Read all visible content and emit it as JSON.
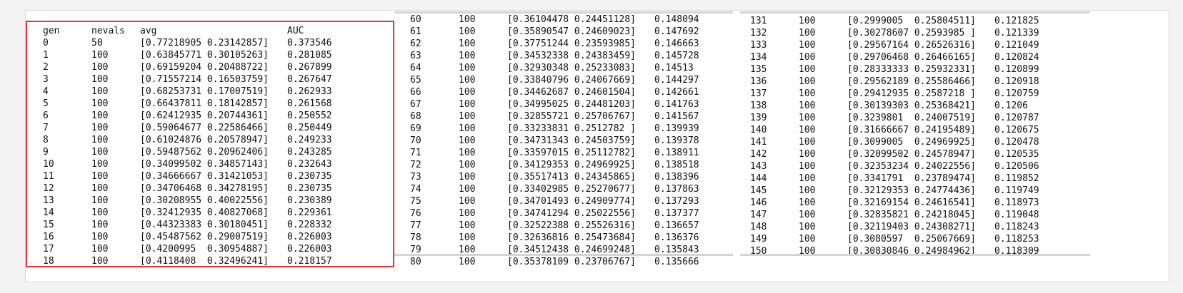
{
  "panel1": {
    "header": {
      "gen": "gen",
      "nevals": "nevals",
      "avg": "avg",
      "auc": "AUC"
    },
    "rows": [
      {
        "gen": "0",
        "nevals": "50",
        "avg": "[0.77218905 0.23142857]",
        "auc": "0.373546"
      },
      {
        "gen": "1",
        "nevals": "100",
        "avg": "[0.63845771 0.30105263]",
        "auc": "0.281085"
      },
      {
        "gen": "2",
        "nevals": "100",
        "avg": "[0.69159204 0.20488722]",
        "auc": "0.267899"
      },
      {
        "gen": "3",
        "nevals": "100",
        "avg": "[0.71557214 0.16503759]",
        "auc": "0.267647"
      },
      {
        "gen": "4",
        "nevals": "100",
        "avg": "[0.68253731 0.17007519]",
        "auc": "0.262933"
      },
      {
        "gen": "5",
        "nevals": "100",
        "avg": "[0.66437811 0.18142857]",
        "auc": "0.261568"
      },
      {
        "gen": "6",
        "nevals": "100",
        "avg": "[0.62412935 0.20744361]",
        "auc": "0.250552"
      },
      {
        "gen": "7",
        "nevals": "100",
        "avg": "[0.59064677 0.22586466]",
        "auc": "0.250449"
      },
      {
        "gen": "8",
        "nevals": "100",
        "avg": "[0.61024876 0.20578947]",
        "auc": "0.249233"
      },
      {
        "gen": "9",
        "nevals": "100",
        "avg": "[0.59487562 0.20962406]",
        "auc": "0.243285"
      },
      {
        "gen": "10",
        "nevals": "100",
        "avg": "[0.34099502 0.34857143]",
        "auc": "0.232643"
      },
      {
        "gen": "11",
        "nevals": "100",
        "avg": "[0.34666667 0.31421053]",
        "auc": "0.230735"
      },
      {
        "gen": "12",
        "nevals": "100",
        "avg": "[0.34706468 0.34278195]",
        "auc": "0.230735"
      },
      {
        "gen": "13",
        "nevals": "100",
        "avg": "[0.30208955 0.40022556]",
        "auc": "0.230389"
      },
      {
        "gen": "14",
        "nevals": "100",
        "avg": "[0.32412935 0.40827068]",
        "auc": "0.229361"
      },
      {
        "gen": "15",
        "nevals": "100",
        "avg": "[0.44323383 0.30180451]",
        "auc": "0.228332"
      },
      {
        "gen": "16",
        "nevals": "100",
        "avg": "[0.45487562 0.29007519]",
        "auc": "0.226003"
      },
      {
        "gen": "17",
        "nevals": "100",
        "avg": "[0.4200995  0.30954887]",
        "auc": "0.226003"
      },
      {
        "gen": "18",
        "nevals": "100",
        "avg": "[0.4118408  0.32496241]",
        "auc": "0.218157"
      }
    ]
  },
  "panel2": {
    "rows": [
      {
        "gen": "60",
        "nevals": "100",
        "avg": "[0.36104478 0.24451128]",
        "auc": "0.148094"
      },
      {
        "gen": "61",
        "nevals": "100",
        "avg": "[0.35890547 0.24609023]",
        "auc": "0.147692"
      },
      {
        "gen": "62",
        "nevals": "100",
        "avg": "[0.37751244 0.23593985]",
        "auc": "0.146663"
      },
      {
        "gen": "63",
        "nevals": "100",
        "avg": "[0.34532338 0.24383459]",
        "auc": "0.145728"
      },
      {
        "gen": "64",
        "nevals": "100",
        "avg": "[0.32930348 0.25233083]",
        "auc": "0.14513"
      },
      {
        "gen": "65",
        "nevals": "100",
        "avg": "[0.33840796 0.24067669]",
        "auc": "0.144297"
      },
      {
        "gen": "66",
        "nevals": "100",
        "avg": "[0.34462687 0.24601504]",
        "auc": "0.142661"
      },
      {
        "gen": "67",
        "nevals": "100",
        "avg": "[0.34995025 0.24481203]",
        "auc": "0.141763"
      },
      {
        "gen": "68",
        "nevals": "100",
        "avg": "[0.32855721 0.25706767]",
        "auc": "0.141567"
      },
      {
        "gen": "69",
        "nevals": "100",
        "avg": "[0.33233831 0.2512782 ]",
        "auc": "0.139939"
      },
      {
        "gen": "70",
        "nevals": "100",
        "avg": "[0.34731343 0.24503759]",
        "auc": "0.139378"
      },
      {
        "gen": "71",
        "nevals": "100",
        "avg": "[0.33597015 0.25112782]",
        "auc": "0.138911"
      },
      {
        "gen": "72",
        "nevals": "100",
        "avg": "[0.34129353 0.24969925]",
        "auc": "0.138518"
      },
      {
        "gen": "73",
        "nevals": "100",
        "avg": "[0.35517413 0.24345865]",
        "auc": "0.138396"
      },
      {
        "gen": "74",
        "nevals": "100",
        "avg": "[0.33402985 0.25270677]",
        "auc": "0.137863"
      },
      {
        "gen": "75",
        "nevals": "100",
        "avg": "[0.34701493 0.24909774]",
        "auc": "0.137293"
      },
      {
        "gen": "76",
        "nevals": "100",
        "avg": "[0.34741294 0.25022556]",
        "auc": "0.137377"
      },
      {
        "gen": "77",
        "nevals": "100",
        "avg": "[0.32522388 0.25526316]",
        "auc": "0.136657"
      },
      {
        "gen": "78",
        "nevals": "100",
        "avg": "[0.32636816 0.25473684]",
        "auc": "0.136376"
      },
      {
        "gen": "79",
        "nevals": "100",
        "avg": "[0.34512438 0.24699248]",
        "auc": "0.135843"
      },
      {
        "gen": "80",
        "nevals": "100",
        "avg": "[0.35378109 0.23706767]",
        "auc": "0.135666"
      }
    ]
  },
  "panel3": {
    "rows": [
      {
        "gen": "131",
        "nevals": "100",
        "avg": "[0.2999005  0.25804511]",
        "auc": "0.121825"
      },
      {
        "gen": "132",
        "nevals": "100",
        "avg": "[0.30278607 0.2593985 ]",
        "auc": "0.121339"
      },
      {
        "gen": "133",
        "nevals": "100",
        "avg": "[0.29567164 0.26526316]",
        "auc": "0.121049"
      },
      {
        "gen": "134",
        "nevals": "100",
        "avg": "[0.29706468 0.26466165]",
        "auc": "0.120824"
      },
      {
        "gen": "135",
        "nevals": "100",
        "avg": "[0.28333333 0.25932331]",
        "auc": "0.120899"
      },
      {
        "gen": "136",
        "nevals": "100",
        "avg": "[0.29562189 0.25586466]",
        "auc": "0.120918"
      },
      {
        "gen": "137",
        "nevals": "100",
        "avg": "[0.29412935 0.2587218 ]",
        "auc": "0.120759"
      },
      {
        "gen": "138",
        "nevals": "100",
        "avg": "[0.30139303 0.25368421]",
        "auc": "0.1206"
      },
      {
        "gen": "139",
        "nevals": "100",
        "avg": "[0.3239801  0.24007519]",
        "auc": "0.120787"
      },
      {
        "gen": "140",
        "nevals": "100",
        "avg": "[0.31666667 0.24195489]",
        "auc": "0.120675"
      },
      {
        "gen": "141",
        "nevals": "100",
        "avg": "[0.3099005  0.24969925]",
        "auc": "0.120478"
      },
      {
        "gen": "142",
        "nevals": "100",
        "avg": "[0.32099502 0.24578947]",
        "auc": "0.120535"
      },
      {
        "gen": "143",
        "nevals": "100",
        "avg": "[0.32353234 0.24022556]",
        "auc": "0.120506"
      },
      {
        "gen": "144",
        "nevals": "100",
        "avg": "[0.3341791  0.23789474]",
        "auc": "0.119852"
      },
      {
        "gen": "145",
        "nevals": "100",
        "avg": "[0.32129353 0.24774436]",
        "auc": "0.119749"
      },
      {
        "gen": "146",
        "nevals": "100",
        "avg": "[0.32169154 0.24616541]",
        "auc": "0.118973"
      },
      {
        "gen": "147",
        "nevals": "100",
        "avg": "[0.32835821 0.24218045]",
        "auc": "0.119048"
      },
      {
        "gen": "148",
        "nevals": "100",
        "avg": "[0.32119403 0.24308271]",
        "auc": "0.118243"
      },
      {
        "gen": "149",
        "nevals": "100",
        "avg": "[0.3080597  0.25067669]",
        "auc": "0.118253"
      },
      {
        "gen": "150",
        "nevals": "100",
        "avg": "[0.30830846 0.24984962]",
        "auc": "0.118309"
      }
    ]
  }
}
